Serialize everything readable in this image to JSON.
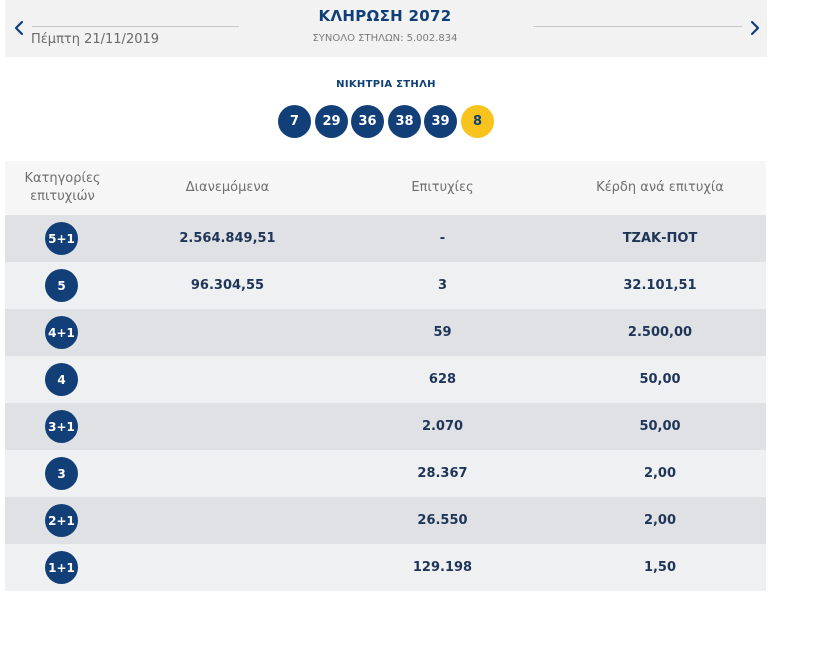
{
  "header": {
    "draw_title": "ΚΛΗΡΩΣΗ 2072",
    "date": "Πέμπτη 21/11/2019",
    "columns_total": "ΣΥΝΟΛΟ ΣΤΗΛΩΝ: 5.002.834",
    "prev_icon": "chevron-left-icon",
    "next_icon": "chevron-right-icon",
    "accent_color": "#0f3f78"
  },
  "winning": {
    "title": "ΝΙΚΗΤΡΙΑ ΣΤΗΛΗ",
    "numbers": [
      "7",
      "29",
      "36",
      "38",
      "39"
    ],
    "joker": "8",
    "ball_color": "#123f77",
    "joker_color": "#f7c31c"
  },
  "table": {
    "headers": {
      "category": "Κατηγορίες επιτυχιών",
      "distributed": "Διανεμόμενα",
      "winners": "Επιτυχίες",
      "prize": "Κέρδη ανά επιτυχία"
    },
    "rows": [
      {
        "category": "5+1",
        "distributed": "2.564.849,51",
        "winners": "-",
        "prize": "ΤΖΑΚ-ΠΟΤ"
      },
      {
        "category": "5",
        "distributed": "96.304,55",
        "winners": "3",
        "prize": "32.101,51"
      },
      {
        "category": "4+1",
        "distributed": "",
        "winners": "59",
        "prize": "2.500,00"
      },
      {
        "category": "4",
        "distributed": "",
        "winners": "628",
        "prize": "50,00"
      },
      {
        "category": "3+1",
        "distributed": "",
        "winners": "2.070",
        "prize": "50,00"
      },
      {
        "category": "3",
        "distributed": "",
        "winners": "28.367",
        "prize": "2,00"
      },
      {
        "category": "2+1",
        "distributed": "",
        "winners": "26.550",
        "prize": "2,00"
      },
      {
        "category": "1+1",
        "distributed": "",
        "winners": "129.198",
        "prize": "1,50"
      }
    ]
  }
}
